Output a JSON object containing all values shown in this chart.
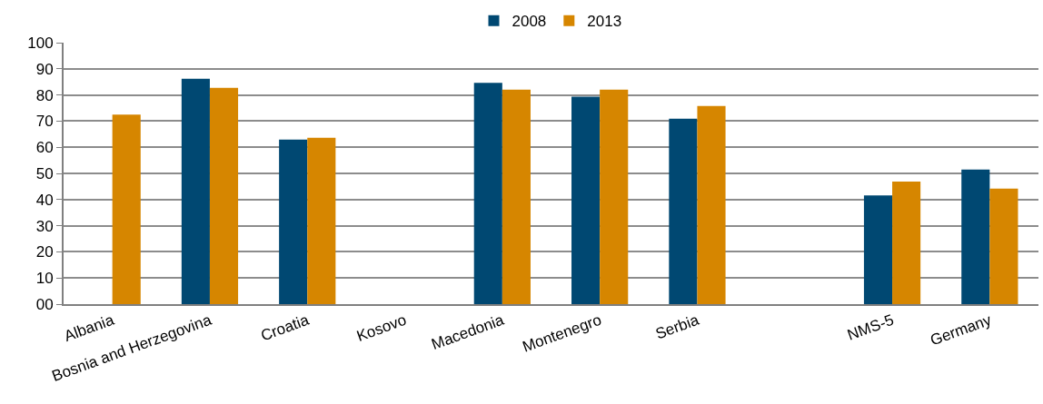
{
  "chart_data": {
    "type": "bar",
    "categories": [
      "Albania",
      "Bosnia and Herzegovina",
      "Croatia",
      "Kosovo",
      "Macedonia",
      "Montenegro",
      "Serbia",
      null,
      "NMS-5",
      "Germany"
    ],
    "series": [
      {
        "name": "2008",
        "color": "#004872",
        "values": [
          null,
          86.2,
          62.9,
          null,
          84.6,
          79.3,
          70.9,
          null,
          41.6,
          51.5
        ]
      },
      {
        "name": "2013",
        "color": "#d68600",
        "values": [
          72.5,
          82.7,
          63.6,
          null,
          82.0,
          82.0,
          75.8,
          null,
          46.9,
          44.2
        ]
      }
    ],
    "ylim": [
      0,
      100
    ],
    "yticks": [
      {
        "value": 0,
        "label": "00"
      },
      10,
      20,
      30,
      40,
      50,
      60,
      70,
      80,
      90,
      100
    ],
    "grid": "y",
    "legend": "top"
  }
}
